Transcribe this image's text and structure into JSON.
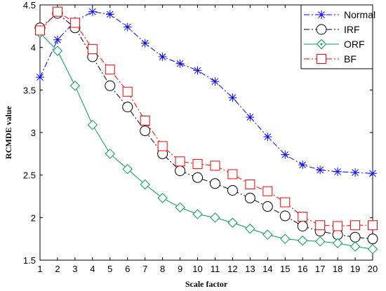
{
  "chart_data": {
    "type": "line",
    "xlabel": "Scale factor",
    "ylabel": "RCMDE value",
    "x": [
      1,
      2,
      3,
      4,
      5,
      6,
      7,
      8,
      9,
      10,
      11,
      12,
      13,
      14,
      15,
      16,
      17,
      18,
      19,
      20
    ],
    "xlim": [
      1,
      20
    ],
    "ylim": [
      1.5,
      4.5
    ],
    "xticks": [
      1,
      2,
      3,
      4,
      5,
      6,
      7,
      8,
      9,
      10,
      11,
      12,
      13,
      14,
      15,
      16,
      17,
      18,
      19,
      20
    ],
    "yticks": [
      1.5,
      2,
      2.5,
      3,
      3.5,
      4,
      4.5
    ],
    "ytick_labels": [
      "1.5",
      "2",
      "2.5",
      "3",
      "3.5",
      "4",
      "4.5"
    ],
    "grid": false,
    "legend_position": "top-right",
    "series": [
      {
        "name": "Normal",
        "color": "#0000ff",
        "line": "dash-dot",
        "marker": "asterisk",
        "values": [
          3.65,
          4.09,
          4.31,
          4.42,
          4.39,
          4.24,
          4.05,
          3.89,
          3.81,
          3.73,
          3.6,
          3.41,
          3.18,
          2.95,
          2.74,
          2.62,
          2.56,
          2.54,
          2.53,
          2.52
        ]
      },
      {
        "name": "IRF",
        "color": "#000000",
        "line": "dash-dot",
        "marker": "circle",
        "values": [
          4.23,
          4.4,
          4.23,
          3.89,
          3.55,
          3.3,
          3.02,
          2.75,
          2.55,
          2.47,
          2.4,
          2.32,
          2.23,
          2.13,
          2.02,
          1.9,
          1.84,
          1.8,
          1.77,
          1.75
        ]
      },
      {
        "name": "ORF",
        "color": "#00a050",
        "line": "solid",
        "marker": "diamond",
        "values": [
          4.17,
          3.96,
          3.55,
          3.09,
          2.75,
          2.57,
          2.39,
          2.23,
          2.12,
          2.04,
          2.0,
          1.94,
          1.87,
          1.8,
          1.75,
          1.73,
          1.72,
          1.7,
          1.66,
          1.63
        ]
      },
      {
        "name": "BF",
        "color": "#ff0000",
        "line": "dash-dot",
        "marker": "square",
        "values": [
          4.2,
          4.42,
          4.29,
          3.98,
          3.74,
          3.48,
          3.14,
          2.84,
          2.66,
          2.63,
          2.61,
          2.51,
          2.39,
          2.31,
          2.18,
          2.01,
          1.91,
          1.9,
          1.91,
          1.91
        ]
      }
    ]
  }
}
